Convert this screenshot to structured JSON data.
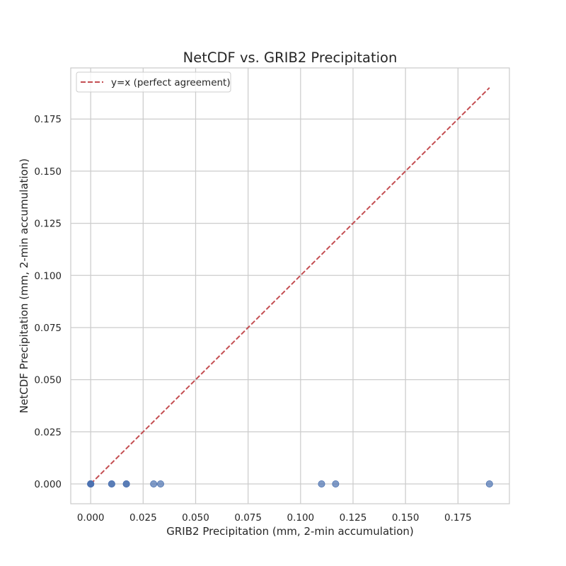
{
  "chart_data": {
    "type": "scatter",
    "title": "NetCDF vs. GRIB2 Precipitation",
    "xlabel": "GRIB2 Precipitation (mm, 2-min accumulation)",
    "ylabel": "NetCDF Precipitation (mm, 2-min accumulation)",
    "xlim": [
      -0.0095,
      0.1995
    ],
    "ylim": [
      -0.0095,
      0.1995
    ],
    "xticks": [
      0.0,
      0.025,
      0.05,
      0.075,
      0.1,
      0.125,
      0.15,
      0.175
    ],
    "yticks": [
      0.0,
      0.025,
      0.05,
      0.075,
      0.1,
      0.125,
      0.15,
      0.175
    ],
    "tick_labels_x": [
      "0.000",
      "0.025",
      "0.050",
      "0.075",
      "0.100",
      "0.125",
      "0.150",
      "0.175"
    ],
    "tick_labels_y": [
      "0.000",
      "0.025",
      "0.050",
      "0.075",
      "0.100",
      "0.125",
      "0.150",
      "0.175"
    ],
    "grid": true,
    "legend_position": "top-left",
    "points": {
      "color": "#4c72b0",
      "x": [
        0.0,
        0.0,
        0.0,
        0.0,
        0.0,
        0.01,
        0.01,
        0.017,
        0.017,
        0.03,
        0.0333,
        0.11,
        0.1167,
        0.19
      ],
      "y": [
        0.0,
        0.0,
        0.0,
        0.0,
        0.0,
        0.0,
        0.0,
        0.0,
        0.0,
        0.0,
        0.0,
        0.0,
        0.0,
        0.0
      ]
    },
    "reference_line": {
      "name": "y=x (perfect agreement)",
      "color": "#c44e52",
      "style": "dashed",
      "x": [
        0.0,
        0.19
      ],
      "y": [
        0.0,
        0.19
      ]
    }
  }
}
